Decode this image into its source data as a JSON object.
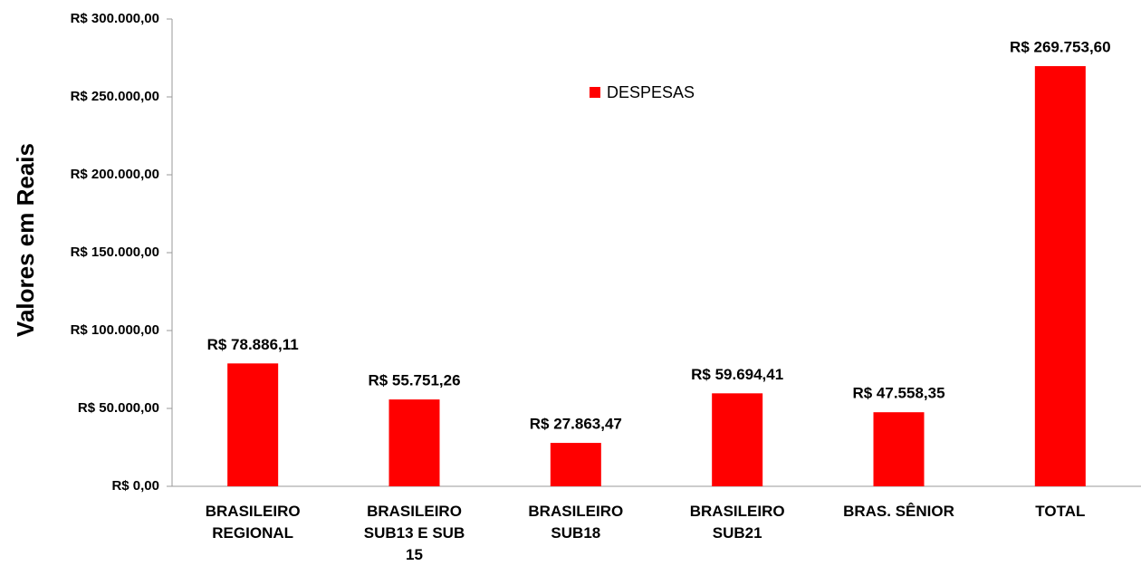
{
  "chart_data": {
    "type": "bar",
    "y_axis_label": "Valores em Reais",
    "categories": [
      "BRASILEIRO REGIONAL",
      "BRASILEIRO SUB13 E SUB 15",
      "BRASILEIRO SUB18",
      "BRASILEIRO SUB21",
      "BRAS. SÊNIOR",
      "TOTAL"
    ],
    "series": [
      {
        "name": "DESPESAS",
        "color": "#ff0000",
        "values": [
          78886.11,
          55751.26,
          27863.47,
          59694.41,
          47558.35,
          269753.6
        ],
        "value_labels": [
          "R$ 78.886,11",
          "R$ 55.751,26",
          "R$ 27.863,47",
          "R$ 59.694,41",
          "R$ 47.558,35",
          "R$ 269.753,60"
        ]
      }
    ],
    "ylim": [
      0,
      300000
    ],
    "yticks": [
      {
        "value": 0,
        "label": "R$ 0,00"
      },
      {
        "value": 50000,
        "label": "R$ 50.000,00"
      },
      {
        "value": 100000,
        "label": "R$ 100.000,00"
      },
      {
        "value": 150000,
        "label": "R$ 150.000,00"
      },
      {
        "value": 200000,
        "label": "R$ 200.000,00"
      },
      {
        "value": 250000,
        "label": "R$ 250.000,00"
      },
      {
        "value": 300000,
        "label": "R$ 300.000,00"
      }
    ],
    "grid": false,
    "legend": "top"
  }
}
